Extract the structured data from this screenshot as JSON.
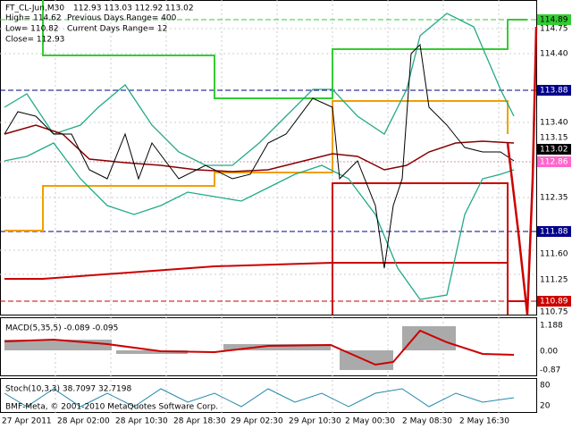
{
  "header": {
    "symbol": "FT_CL-Jun,M30",
    "ohlc": "112.93 113.03 112.92 113.02",
    "high": "High= 114.62",
    "prev_range": "Previous Days Range= 400",
    "low": "Low= 110.82",
    "cur_range": "Current Days Range= 12",
    "close": "Close= 112.93"
  },
  "price_axis": [
    "114.89",
    "114.75",
    "114.40",
    "113.88",
    "113.40",
    "113.15",
    "113.02",
    "112.86",
    "112.35",
    "111.88",
    "111.60",
    "111.25",
    "110.89",
    "110.75"
  ],
  "macd": {
    "label": "MACD(5,35,5) -0.089 -0.095",
    "axis": [
      "1.188",
      "0.00",
      "-0.87"
    ]
  },
  "stoch": {
    "label": "Stoch(10,3,3) 38.7097 32.7198",
    "axis": [
      "80",
      "20"
    ]
  },
  "copyright": "BMF-Meta, © 2001-2010 MetaQuotes Software Corp.",
  "time_axis": [
    "27 Apr 2011",
    "28 Apr 02:00",
    "28 Apr 10:30",
    "28 Apr 18:30",
    "29 Apr 02:30",
    "29 Apr 10:30",
    "2 May 00:30",
    "2 May 08:30",
    "2 May 16:30"
  ]
}
